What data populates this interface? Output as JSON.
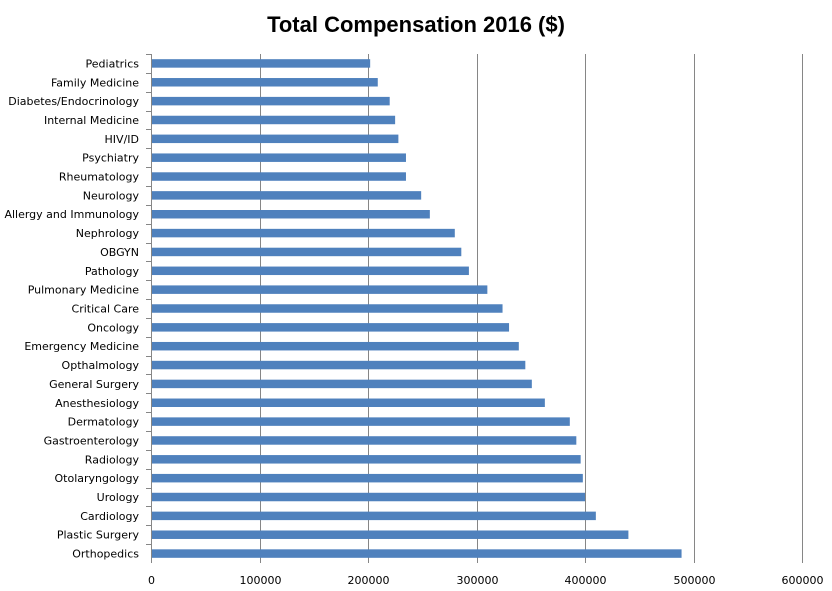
{
  "chart_data": {
    "type": "bar",
    "orientation": "horizontal",
    "title": "Total Compensation 2016 ($)",
    "xlabel": "",
    "ylabel": "",
    "xlim": [
      0,
      600000
    ],
    "x_ticks": [
      "0",
      "100000",
      "200000",
      "300000",
      "400000",
      "500000",
      "600000"
    ],
    "grid": true,
    "legend": "none",
    "bar_color": "#4f81bd",
    "categories": [
      "Pediatrics",
      "Family Medicine",
      "Diabetes/Endocrinology",
      "Internal Medicine",
      "HIV/ID",
      "Psychiatry",
      "Rheumatology",
      "Neurology",
      "Allergy and Immunology",
      "Nephrology",
      "OBGYN",
      "Pathology",
      "Pulmonary Medicine",
      "Critical Care",
      "Oncology",
      "Emergency Medicine",
      "Opthalmology",
      "General Surgery",
      "Anesthesiology",
      "Dermatology",
      "Gastroenterology",
      "Radiology",
      "Otolaryngology",
      "Urology",
      "Cardiology",
      "Plastic Surgery",
      "Orthopedics"
    ],
    "values": [
      202000,
      209000,
      220000,
      225000,
      228000,
      235000,
      235000,
      249000,
      257000,
      280000,
      286000,
      293000,
      310000,
      324000,
      330000,
      339000,
      345000,
      351000,
      363000,
      386000,
      392000,
      396000,
      398000,
      400000,
      410000,
      440000,
      489000
    ]
  }
}
